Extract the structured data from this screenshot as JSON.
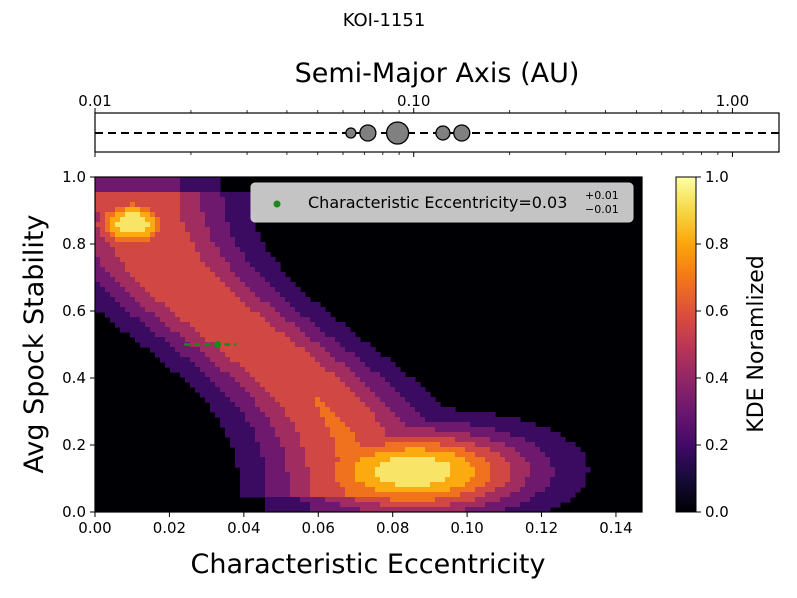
{
  "suptitle": "KOI-1151",
  "top_panel": {
    "title": "Semi-Major Axis (AU)",
    "ticks": [
      "0.01",
      "0.10",
      "1.00"
    ],
    "tick_values": [
      0.01,
      0.1,
      1.0
    ],
    "xlim": [
      0.01,
      1.4
    ],
    "scale": "log"
  },
  "chart_data": [
    {
      "type": "scatter",
      "name": "",
      "x_scale": "log",
      "xlim": [
        0.01,
        1.4
      ],
      "x": [
        0.0635,
        0.0718,
        0.089,
        0.1235,
        0.1415
      ],
      "marker_sizes": [
        5,
        8,
        11,
        7,
        8
      ],
      "dashed_line_y": 0,
      "marker_color": "#808080"
    },
    {
      "type": "heatmap",
      "xlabel": "Characteristic Eccentricity",
      "ylabel": "Avg Spock Stability",
      "xlim": [
        0.0,
        0.147
      ],
      "ylim": [
        0.0,
        1.0
      ],
      "xticks": [
        "0.00",
        "0.02",
        "0.04",
        "0.06",
        "0.08",
        "0.10",
        "0.12",
        "0.14"
      ],
      "xtick_values": [
        0,
        0.02,
        0.04,
        0.06,
        0.08,
        0.1,
        0.12,
        0.14
      ],
      "yticks": [
        "0.0",
        "0.2",
        "0.4",
        "0.6",
        "0.8",
        "1.0"
      ],
      "ytick_values": [
        0,
        0.2,
        0.4,
        0.6,
        0.8,
        1.0
      ],
      "colormap": "inferno",
      "colorbar_label": "KDE Noramlized",
      "colorbar_ticks": [
        "0.0",
        "0.2",
        "0.4",
        "0.6",
        "0.8",
        "1.0"
      ],
      "colorbar_tick_values": [
        0,
        0.2,
        0.4,
        0.6,
        0.8,
        1.0
      ],
      "contour_levels": [
        0.125,
        0.25,
        0.375,
        0.5,
        0.625,
        0.75,
        0.875
      ],
      "kde_components": [
        {
          "x": 0.01,
          "y": 0.86,
          "sx": 0.008,
          "sy": 0.06,
          "w": 1.0
        },
        {
          "x": 0.085,
          "y": 0.12,
          "sx": 0.022,
          "sy": 0.09,
          "w": 0.95
        }
      ],
      "point": {
        "x": 0.033,
        "y": 0.5,
        "xerr_minus": 0.009,
        "xerr_plus": 0.005,
        "color": "#1b8a1b"
      },
      "legend": {
        "label_main": "Characteristic Eccentricity=0.03",
        "sup": "+0.01",
        "sub": "−0.01",
        "placement": "upper right"
      }
    }
  ]
}
